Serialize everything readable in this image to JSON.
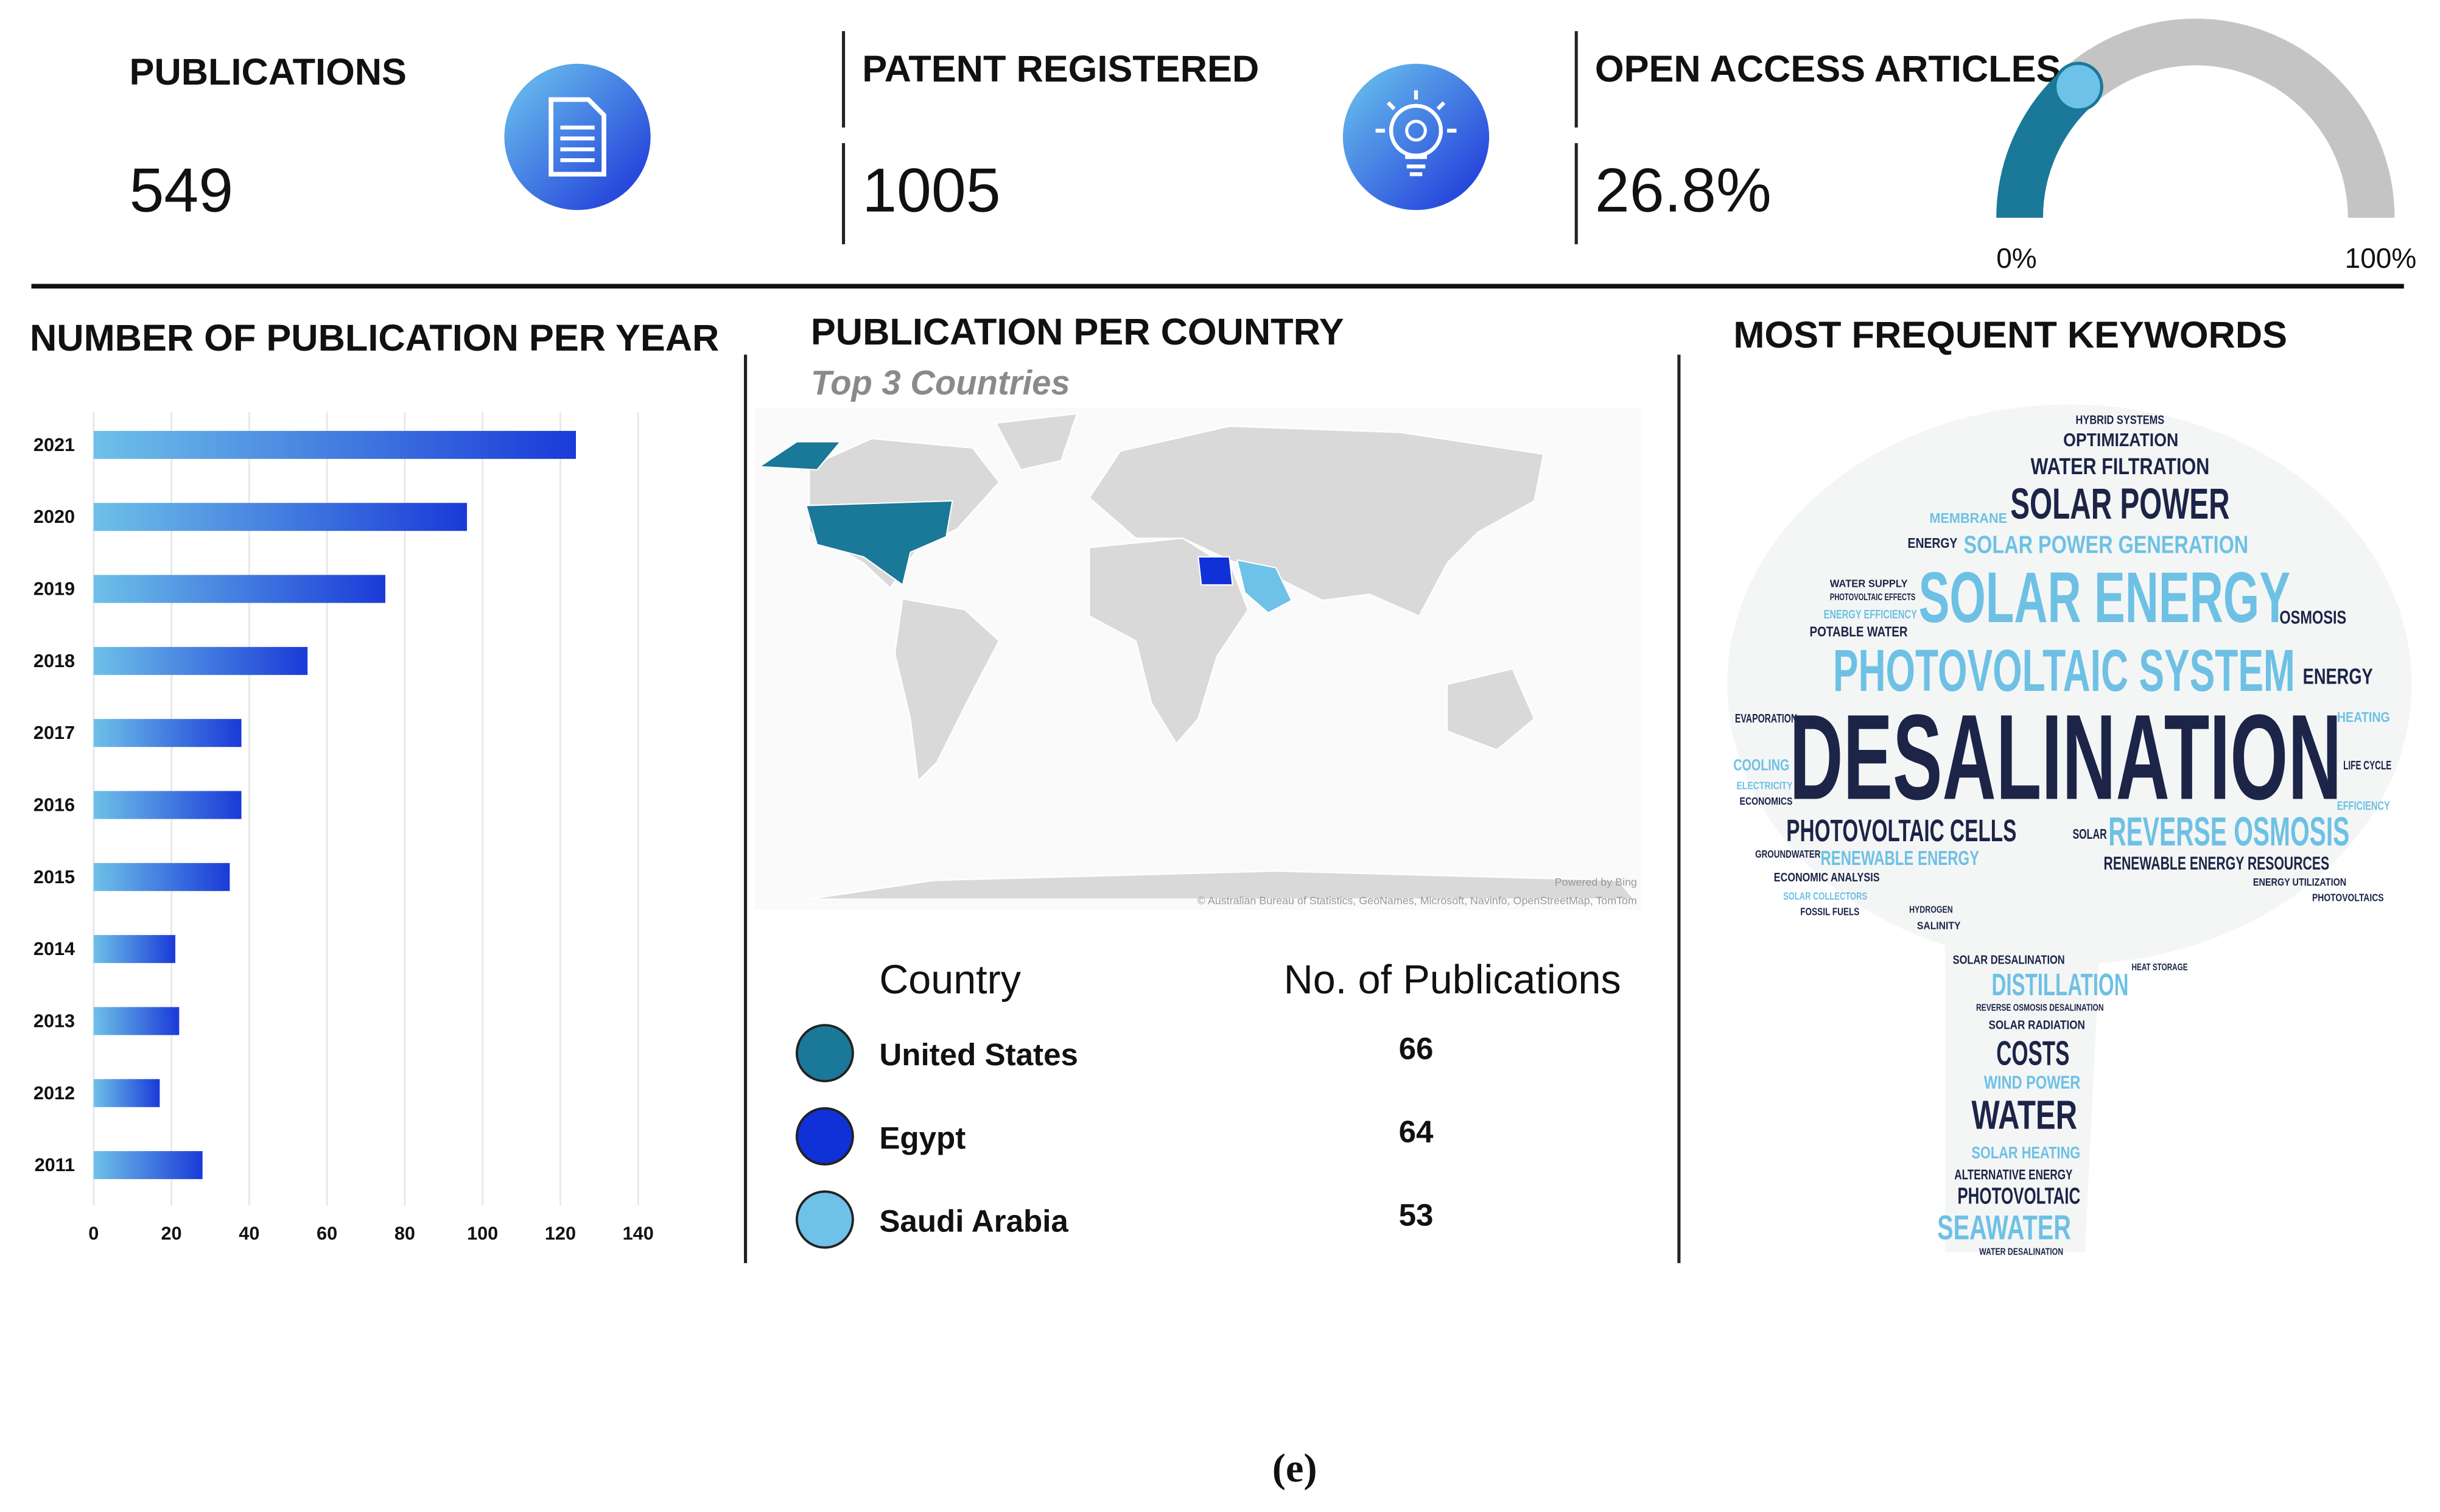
{
  "kpis": [
    {
      "label": "PUBLICATIONS",
      "value": 549
    },
    {
      "label": "PATENT REGISTERED",
      "value": 1005
    },
    {
      "label": "OPEN ACCESS ARTICLES",
      "value": 26.8,
      "value_label": "26.8%"
    }
  ],
  "gauge": {
    "min": {
      "value": 0,
      "label": "0%"
    },
    "max": {
      "value": 100,
      "label": "100%"
    },
    "color": "#1a7898",
    "track_color": "#c4c4c4"
  },
  "chart_data": {
    "type": "bar",
    "orientation": "horizontal",
    "title": "NUMBER OF PUBLICATION PER YEAR",
    "categories": [
      "2021",
      "2020",
      "2019",
      "2018",
      "2017",
      "2016",
      "2015",
      "2014",
      "2013",
      "2012",
      "2011"
    ],
    "values": [
      124,
      96,
      75,
      55,
      38,
      38,
      35,
      21,
      22,
      17,
      28
    ],
    "color": [
      "#6ec1e8",
      "#1a3ad8"
    ],
    "xlim": [
      0,
      140
    ],
    "xticks": [
      0,
      20,
      40,
      60,
      80,
      100,
      120,
      140
    ],
    "grid": true
  },
  "countries": {
    "title": "PUBLICATION PER COUNTRY",
    "subtitle": "Top 3 Countries",
    "columns": [
      "Country",
      "No. of Publications"
    ],
    "rows": [
      {
        "country": "United States",
        "publications": 66,
        "color": "#1a7898"
      },
      {
        "country": "Egypt",
        "publications": 64,
        "color": "#1030d8"
      },
      {
        "country": "Saudi Arabia",
        "publications": 53,
        "color": "#6ec1e8"
      }
    ],
    "map_credits": [
      "Powered by Bing",
      "© Australian Bureau of Statistics, GeoNames, Microsoft, Navinfo, OpenStreetMap, TomTom"
    ]
  },
  "keywords": {
    "title": "MOST FREQUENT KEYWORDS",
    "words": [
      {
        "text": "DESALINATION",
        "color": "#1c2447"
      },
      {
        "text": "PHOTOVOLTAIC SYSTEM",
        "color": "#6ec1e4"
      },
      {
        "text": "SOLAR ENERGY",
        "color": "#6ec1e4"
      },
      {
        "text": "SOLAR POWER",
        "color": "#1c2447"
      },
      {
        "text": "SOLAR POWER GENERATION",
        "color": "#6ec1e4"
      },
      {
        "text": "WATER FILTRATION",
        "color": "#1c2447"
      },
      {
        "text": "OPTIMIZATION",
        "color": "#1c2447"
      },
      {
        "text": "HYBRID SYSTEMS",
        "color": "#1c2447"
      },
      {
        "text": "MEMBRANE",
        "color": "#6ec1e4"
      },
      {
        "text": "ENERGY",
        "color": "#1c2447"
      },
      {
        "text": "OSMOSIS",
        "color": "#1c2447"
      },
      {
        "text": "ENERGY",
        "color": "#1c2447"
      },
      {
        "text": "POTABLE WATER",
        "color": "#1c2447"
      },
      {
        "text": "WATER SUPPLY",
        "color": "#1c2447"
      },
      {
        "text": "PHOTOVOLTAIC EFFECTS",
        "color": "#1c2447"
      },
      {
        "text": "ENERGY EFFICIENCY",
        "color": "#6ec1e4"
      },
      {
        "text": "HEATING",
        "color": "#6ec1e4"
      },
      {
        "text": "LIFE CYCLE",
        "color": "#1c2447"
      },
      {
        "text": "EFFICIENCY",
        "color": "#6ec1e4"
      },
      {
        "text": "EVAPORATION",
        "color": "#1c2447"
      },
      {
        "text": "COOLING",
        "color": "#6ec1e4"
      },
      {
        "text": "ELECTRICITY",
        "color": "#6ec1e4"
      },
      {
        "text": "ECONOMICS",
        "color": "#1c2447"
      },
      {
        "text": "PHOTOVOLTAIC CELLS",
        "color": "#1c2447"
      },
      {
        "text": "SOLAR",
        "color": "#1c2447"
      },
      {
        "text": "REVERSE OSMOSIS",
        "color": "#6ec1e4"
      },
      {
        "text": "GROUNDWATER",
        "color": "#1c2447"
      },
      {
        "text": "RENEWABLE ENERGY",
        "color": "#6ec1e4"
      },
      {
        "text": "RENEWABLE ENERGY RESOURCES",
        "color": "#1c2447"
      },
      {
        "text": "ECONOMIC ANALYSIS",
        "color": "#1c2447"
      },
      {
        "text": "ENERGY UTILIZATION",
        "color": "#1c2447"
      },
      {
        "text": "SOLAR COLLECTORS",
        "color": "#6ec1e4"
      },
      {
        "text": "PHOTOVOLTAICS",
        "color": "#1c2447"
      },
      {
        "text": "FOSSIL FUELS",
        "color": "#1c2447"
      },
      {
        "text": "HYDROGEN",
        "color": "#1c2447"
      },
      {
        "text": "SALINITY",
        "color": "#1c2447"
      },
      {
        "text": "SOLAR DESALINATION",
        "color": "#1c2447"
      },
      {
        "text": "HEAT STORAGE",
        "color": "#1c2447"
      },
      {
        "text": "DISTILLATION",
        "color": "#6ec1e4"
      },
      {
        "text": "REVERSE OSMOSIS DESALINATION",
        "color": "#1c2447"
      },
      {
        "text": "SOLAR RADIATION",
        "color": "#1c2447"
      },
      {
        "text": "COSTS",
        "color": "#1c2447"
      },
      {
        "text": "WIND POWER",
        "color": "#6ec1e4"
      },
      {
        "text": "WATER",
        "color": "#1c2447"
      },
      {
        "text": "SOLAR HEATING",
        "color": "#6ec1e4"
      },
      {
        "text": "ALTERNATIVE ENERGY",
        "color": "#1c2447"
      },
      {
        "text": "PHOTOVOLTAIC",
        "color": "#1c2447"
      },
      {
        "text": "SEAWATER",
        "color": "#6ec1e4"
      },
      {
        "text": "WATER DESALINATION",
        "color": "#1c2447"
      }
    ]
  },
  "caption": "(e)"
}
